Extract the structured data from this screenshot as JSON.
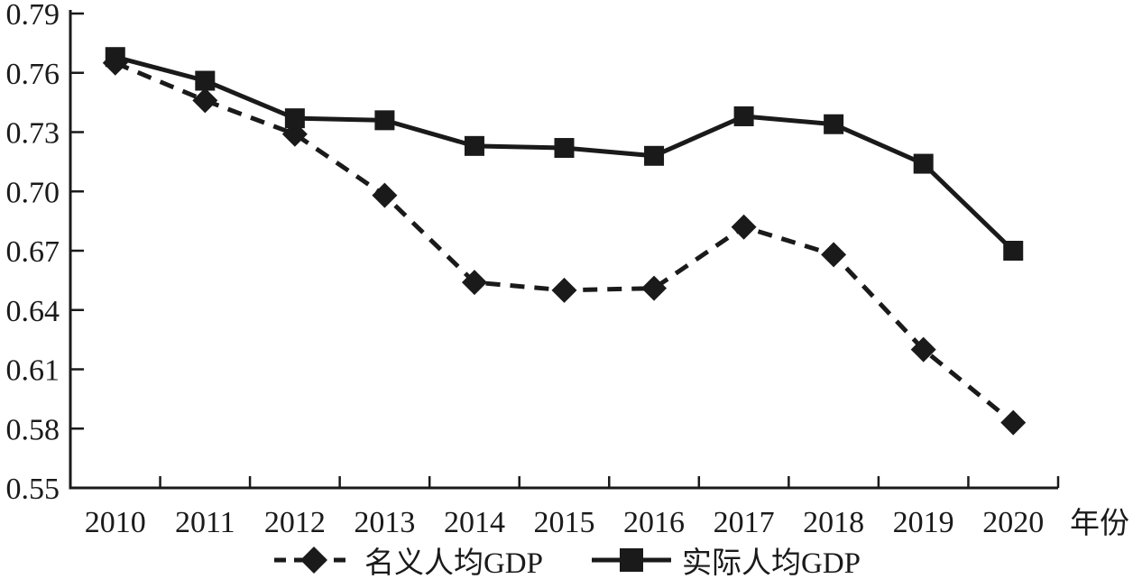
{
  "chart_data": {
    "type": "line",
    "title": "",
    "xlabel": "年份",
    "ylabel": "",
    "ylim": [
      0.55,
      0.79
    ],
    "y_tick_step": 0.03,
    "y_ticks": [
      "0.55",
      "0.58",
      "0.61",
      "0.64",
      "0.67",
      "0.70",
      "0.73",
      "0.76",
      "0.79"
    ],
    "categories": [
      "2010",
      "2011",
      "2012",
      "2013",
      "2014",
      "2015",
      "2016",
      "2017",
      "2018",
      "2019",
      "2020"
    ],
    "series": [
      {
        "name": "名义人均GDP",
        "marker": "diamond",
        "line": "dashed",
        "values": [
          0.765,
          0.746,
          0.729,
          0.698,
          0.654,
          0.65,
          0.651,
          0.682,
          0.668,
          0.62,
          0.583
        ]
      },
      {
        "name": "实际人均GDP",
        "marker": "square",
        "line": "solid",
        "values": [
          0.768,
          0.756,
          0.737,
          0.736,
          0.723,
          0.722,
          0.718,
          0.738,
          0.734,
          0.714,
          0.67
        ]
      }
    ],
    "legend_position": "bottom",
    "grid": false,
    "line_color": "#1a1a1a",
    "background": "#ffffff"
  }
}
